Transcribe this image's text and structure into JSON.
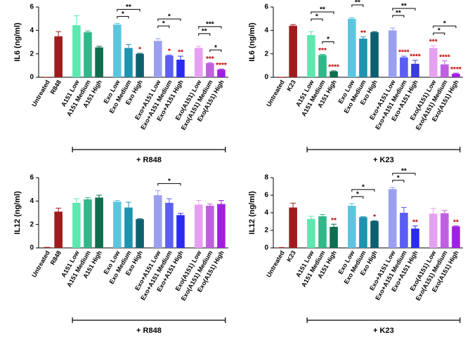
{
  "chart_data": [
    {
      "type": "bar",
      "ylabel": "IL6 (ng/ml)",
      "group_label": "+ R848",
      "categories": [
        "Untreated",
        "R848",
        "A151 Low",
        "A151 Medium",
        "A151 High",
        "Exo Low",
        "Exo Medium",
        "Exo High",
        "Exo+A151 Low",
        "Exo+A151 Medium",
        "Exo+A151 High",
        "Exo(A151) Low",
        "Exo(A151) Medium",
        "Exo(A151) High"
      ],
      "values": [
        0,
        3.5,
        4.45,
        3.85,
        2.55,
        4.5,
        2.5,
        2.0,
        3.1,
        1.85,
        1.5,
        2.5,
        1.2,
        0.65
      ],
      "errors": [
        0,
        0.4,
        0.8,
        0.1,
        0.1,
        0.1,
        0.3,
        0.05,
        0.2,
        0.05,
        0.3,
        0.15,
        0.05,
        0.05
      ],
      "colors": [
        "#a01c1c",
        "#a01c1c",
        "#5de8b0",
        "#2fb888",
        "#0f6e50",
        "#5cc6e0",
        "#1e94b0",
        "#0e5f70",
        "#9aa0f0",
        "#5b5ef5",
        "#2a2af0",
        "#e6a0f0",
        "#c060e0",
        "#a020e0"
      ],
      "annotations": [
        null,
        null,
        null,
        null,
        null,
        null,
        null,
        "*",
        null,
        "*",
        "**",
        null,
        "***",
        "****"
      ],
      "comparisons": [
        {
          "from": 5,
          "to": 6,
          "label": "*"
        },
        {
          "from": 5,
          "to": 7,
          "label": "**"
        },
        {
          "from": 8,
          "to": 9,
          "label": "*"
        },
        {
          "from": 8,
          "to": 10,
          "label": "*"
        },
        {
          "from": 12,
          "to": 13,
          "label": "*"
        },
        {
          "from": 11,
          "to": 12,
          "label": "**"
        },
        {
          "from": 11,
          "to": 13,
          "label": "***"
        }
      ],
      "ylim": [
        0,
        6
      ],
      "yticks": [
        0,
        2,
        4,
        6
      ]
    },
    {
      "type": "bar",
      "ylabel": "IL6 (ng/ml)",
      "group_label": "+ K23",
      "categories": [
        "Untreated",
        "K23",
        "A151 Low",
        "A151 Medium",
        "A151 High",
        "Exo Low",
        "Exo Medium",
        "Exo High",
        "Exo+A151 Low",
        "Exo+A151 Medium",
        "Exo+A151 High",
        "Exo(A151) Low",
        "Exo(A151) Medium",
        "Exo(A151) High"
      ],
      "values": [
        0,
        4.4,
        3.6,
        1.9,
        0.5,
        5.0,
        3.3,
        3.85,
        4.0,
        1.7,
        1.15,
        2.5,
        1.1,
        0.3
      ],
      "errors": [
        0,
        0.1,
        0.3,
        0.05,
        0.05,
        0.1,
        0.15,
        0.05,
        0.2,
        0.1,
        0.3,
        0.2,
        0.3,
        0.05
      ],
      "colors": [
        "#a01c1c",
        "#a01c1c",
        "#5de8b0",
        "#2fb888",
        "#0f6e50",
        "#5cc6e0",
        "#1e94b0",
        "#0e5f70",
        "#9aa0f0",
        "#5b5ef5",
        "#3a3ae0",
        "#e6a0f0",
        "#c060e0",
        "#a020e0"
      ],
      "annotations": [
        null,
        null,
        null,
        "***",
        "****",
        null,
        "**",
        null,
        null,
        "****",
        "****",
        "***",
        "****",
        "****"
      ],
      "comparisons": [
        {
          "from": 3,
          "to": 4,
          "label": "*"
        },
        {
          "from": 2,
          "to": 3,
          "label": "*"
        },
        {
          "from": 2,
          "to": 4,
          "label": "**"
        },
        {
          "from": 5,
          "to": 6,
          "label": "**"
        },
        {
          "from": 5,
          "to": 7,
          "label": "*"
        },
        {
          "from": 8,
          "to": 9,
          "label": "**"
        },
        {
          "from": 8,
          "to": 10,
          "label": "**"
        },
        {
          "from": 11,
          "to": 12,
          "label": "*"
        },
        {
          "from": 11,
          "to": 13,
          "label": "*"
        }
      ],
      "ylim": [
        0,
        6
      ],
      "yticks": [
        0,
        2,
        4,
        6
      ]
    },
    {
      "type": "bar",
      "ylabel": "IL12 (ng/ml)",
      "group_label": "+ R848",
      "categories": [
        "Untreated",
        "R848",
        "A151 Low",
        "A151 Medium",
        "A151 High",
        "Exo Low",
        "Exo Medium",
        "Exo High",
        "Exo+A151 Low",
        "Exo+A151 Medium",
        "Exo+A151 High",
        "Exo(A151) Low",
        "Exo(A151) Medium",
        "Exo(A151) High"
      ],
      "values": [
        0.05,
        3.1,
        3.85,
        4.15,
        4.3,
        3.95,
        3.45,
        2.45,
        4.5,
        3.85,
        2.8,
        3.7,
        3.6,
        3.75
      ],
      "errors": [
        0,
        0.3,
        0.35,
        0.15,
        0.2,
        0.1,
        0.45,
        0.05,
        0.4,
        0.35,
        0.15,
        0.35,
        0.15,
        0.3
      ],
      "colors": [
        "#a01c1c",
        "#a01c1c",
        "#5de8b0",
        "#2fb888",
        "#0f6e50",
        "#5cc6e0",
        "#1e94b0",
        "#0e5f70",
        "#9aa0f0",
        "#5b5ef5",
        "#2a2af0",
        "#e6a0f0",
        "#c060e0",
        "#a020e0"
      ],
      "annotations": [
        null,
        null,
        null,
        null,
        null,
        null,
        null,
        null,
        null,
        null,
        null,
        null,
        null,
        null
      ],
      "comparisons": [
        {
          "from": 8,
          "to": 10,
          "label": "*"
        }
      ],
      "ylim": [
        0,
        6
      ],
      "yticks": [
        0,
        2,
        4,
        6
      ]
    },
    {
      "type": "bar",
      "ylabel": "IL12 (ng/ml)",
      "group_label": "+ K23",
      "categories": [
        "Untreated",
        "K23",
        "A151 Low",
        "A151 Medium",
        "A151 High",
        "Exo Low",
        "Exo Medium",
        "Exo High",
        "Exo+A151 Low",
        "Exo+A151 Medium",
        "Exo+A151 High",
        "Exo(A151) Low",
        "Exo(A151) Medium",
        "Exo(A151) High"
      ],
      "values": [
        0.05,
        4.6,
        3.3,
        3.6,
        2.4,
        4.8,
        3.5,
        3.05,
        6.7,
        4.0,
        2.2,
        3.9,
        3.95,
        2.45
      ],
      "errors": [
        0,
        0.5,
        0.3,
        0.2,
        0.3,
        0.25,
        0.05,
        0.05,
        0.2,
        0.6,
        0.3,
        0.6,
        0.3,
        0.05
      ],
      "colors": [
        "#a01c1c",
        "#a01c1c",
        "#5de8b0",
        "#2fb888",
        "#0f6e50",
        "#5cc6e0",
        "#1e94b0",
        "#0e5f70",
        "#9aa0f0",
        "#5b5ef5",
        "#2a2af0",
        "#e6a0f0",
        "#c060e0",
        "#a020e0"
      ],
      "annotations": [
        null,
        null,
        null,
        null,
        "**",
        null,
        null,
        "*",
        null,
        null,
        "**",
        null,
        null,
        "**"
      ],
      "comparisons": [
        {
          "from": 5,
          "to": 6,
          "label": "*"
        },
        {
          "from": 5,
          "to": 7,
          "label": "*"
        },
        {
          "from": 8,
          "to": 9,
          "label": "*"
        },
        {
          "from": 8,
          "to": 10,
          "label": "**"
        }
      ],
      "ylim": [
        0,
        8
      ],
      "yticks": [
        0,
        2,
        4,
        6,
        8
      ]
    }
  ]
}
